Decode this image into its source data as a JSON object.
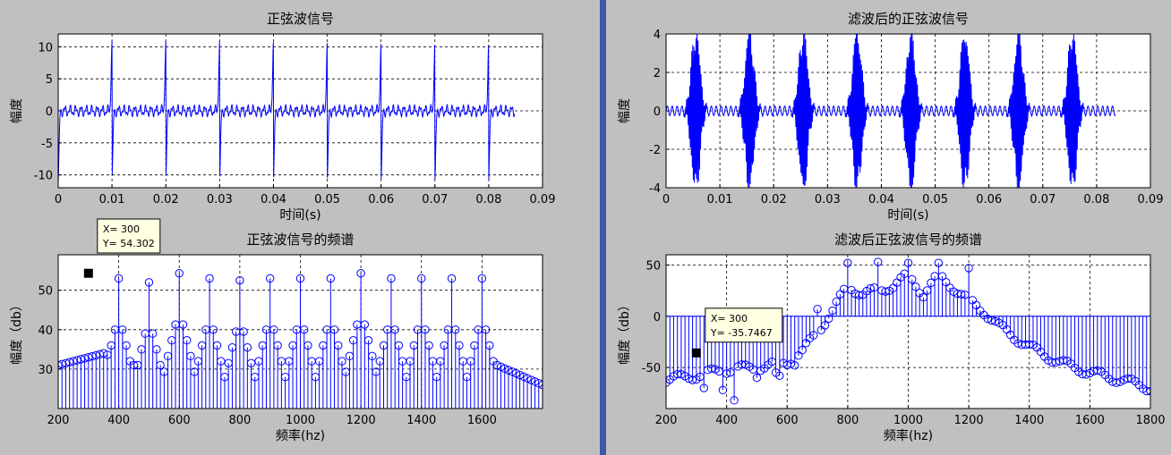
{
  "chart_data": [
    {
      "id": "c1",
      "type": "line",
      "title": "正弦波信号",
      "xlabel": "时间(s)",
      "ylabel": "幅度",
      "xlim": [
        0,
        0.09
      ],
      "ylim": [
        -12,
        12
      ],
      "xticks": [
        0,
        0.01,
        0.02,
        0.03,
        0.04,
        0.05,
        0.06,
        0.07,
        0.08,
        0.09
      ],
      "xtick_labels": [
        "0",
        "0.01",
        "0.02",
        "0.03",
        "0.04",
        "0.05",
        "0.06",
        "0.07",
        "0.08",
        "0.09"
      ],
      "yticks": [
        -10,
        -5,
        0,
        5,
        10
      ],
      "ytick_labels": [
        "-10",
        "-5",
        "0",
        "5",
        "10"
      ],
      "grid": true,
      "series": [
        {
          "color": "#0000ff",
          "impulse_times": [
            0,
            0.01,
            0.02,
            0.03,
            0.04,
            0.05,
            0.06,
            0.07,
            0.08
          ],
          "peak": 11,
          "baseline_ripple": 1.2,
          "x_end": 0.0848
        }
      ]
    },
    {
      "id": "c2",
      "type": "line",
      "title": "滤波后的正弦波信号",
      "xlabel": "时间(s)",
      "ylabel": "幅度",
      "xlim": [
        0,
        0.09
      ],
      "ylim": [
        -4,
        4
      ],
      "xticks": [
        0,
        0.01,
        0.02,
        0.03,
        0.04,
        0.05,
        0.06,
        0.07,
        0.08,
        0.09
      ],
      "xtick_labels": [
        "0",
        "0.01",
        "0.02",
        "0.03",
        "0.04",
        "0.05",
        "0.06",
        "0.07",
        "0.08",
        "0.09"
      ],
      "yticks": [
        -4,
        -2,
        0,
        2,
        4
      ],
      "ytick_labels": [
        "-4",
        "-2",
        "0",
        "2",
        "4"
      ],
      "grid": true,
      "series": [
        {
          "color": "#0000ff",
          "burst_centers": [
            0.0055,
            0.0155,
            0.0255,
            0.0355,
            0.0455,
            0.0555,
            0.0655,
            0.0755
          ],
          "peak": 4,
          "baseline_ripple": 0.25,
          "x_end": 0.0835
        }
      ]
    },
    {
      "id": "c3",
      "type": "stem",
      "title": "正弦波信号的频谱",
      "xlabel": "频率(hz)",
      "ylabel": "幅度（db）",
      "xlim": [
        200,
        1800
      ],
      "ylim": [
        20,
        59
      ],
      "xticks": [
        200,
        400,
        600,
        800,
        1000,
        1200,
        1400,
        1600
      ],
      "xtick_labels": [
        "200",
        "400",
        "600",
        "800",
        "1000",
        "1200",
        "1400",
        "1600"
      ],
      "yticks": [
        30,
        40,
        50
      ],
      "ytick_labels": [
        "30",
        "40",
        "50"
      ],
      "grid": true,
      "step": 12.5,
      "peaks": [
        400,
        500,
        600,
        700,
        800,
        900,
        1000,
        1100,
        1200,
        1300,
        1400,
        1500,
        1600
      ],
      "peak_values": [
        53,
        52,
        54.3,
        53,
        52.5,
        53,
        53,
        53,
        54.3,
        53,
        53,
        53,
        53
      ],
      "valleys": [
        [
          200,
          31
        ],
        [
          350,
          34
        ],
        [
          450,
          31
        ],
        [
          550,
          23
        ],
        [
          640,
          27
        ],
        [
          760,
          26
        ],
        [
          850,
          21
        ],
        [
          960,
          26
        ],
        [
          1060,
          26
        ],
        [
          1150,
          21
        ],
        [
          1250,
          26
        ],
        [
          1360,
          26
        ],
        [
          1450,
          26
        ],
        [
          1550,
          24
        ],
        [
          1650,
          31
        ],
        [
          1800,
          26
        ]
      ],
      "datatip": {
        "x_value": 300,
        "y_value": 54.302,
        "label_x": "X= 300",
        "label_y": "Y= 54.302"
      }
    },
    {
      "id": "c4",
      "type": "stem",
      "title": "滤波后正弦波信号的频谱",
      "xlabel": "频率(hz)",
      "ylabel": "幅度（db）",
      "xlim": [
        200,
        1800
      ],
      "ylim": [
        -90,
        60
      ],
      "xticks": [
        200,
        400,
        600,
        800,
        1000,
        1200,
        1400,
        1600,
        1800
      ],
      "xtick_labels": [
        "200",
        "400",
        "600",
        "800",
        "1000",
        "1200",
        "1400",
        "1600",
        "1800"
      ],
      "yticks": [
        -50,
        0,
        50
      ],
      "ytick_labels": [
        "-50",
        "0",
        "50"
      ],
      "grid": true,
      "step": 12.5,
      "profile": [
        [
          200,
          -62
        ],
        [
          300,
          -58
        ],
        [
          400,
          -52
        ],
        [
          500,
          -50
        ],
        [
          600,
          -45
        ],
        [
          650,
          -35
        ],
        [
          700,
          -15
        ],
        [
          750,
          5
        ],
        [
          800,
          30
        ],
        [
          850,
          22
        ],
        [
          900,
          25
        ],
        [
          950,
          30
        ],
        [
          1000,
          40
        ],
        [
          1050,
          22
        ],
        [
          1100,
          40
        ],
        [
          1150,
          28
        ],
        [
          1200,
          15
        ],
        [
          1250,
          5
        ],
        [
          1300,
          -10
        ],
        [
          1400,
          -30
        ],
        [
          1500,
          -45
        ],
        [
          1600,
          -55
        ],
        [
          1700,
          -62
        ],
        [
          1800,
          -70
        ]
      ],
      "peaks": [
        [
          800,
          52
        ],
        [
          900,
          53
        ],
        [
          1000,
          52
        ],
        [
          1100,
          52
        ],
        [
          1200,
          47
        ],
        [
          700,
          7
        ]
      ],
      "outliers": [
        [
          320,
          -70
        ],
        [
          390,
          -72
        ],
        [
          430,
          -82
        ],
        [
          500,
          -60
        ],
        [
          560,
          -55
        ],
        [
          580,
          -58
        ],
        [
          620,
          -48
        ]
      ],
      "datatip": {
        "x_value": 300,
        "y_value": -35.7467,
        "label_x": "X= 300",
        "label_y": "Y= -35.7467"
      }
    }
  ]
}
